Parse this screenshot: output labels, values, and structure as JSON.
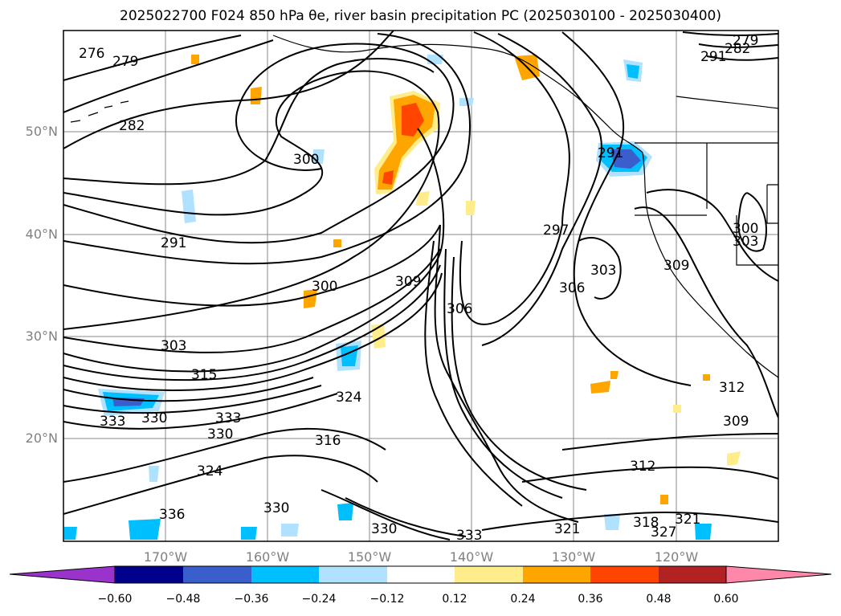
{
  "title": "2025022700 F024 850 hPa θe, river basin precipitation PC (2025030100 - 2025030400)",
  "map": {
    "lat_ticks": [
      "50°N",
      "40°N",
      "30°N",
      "20°N"
    ],
    "lon_ticks": [
      "170°W",
      "160°W",
      "150°W",
      "140°W",
      "130°W",
      "120°W"
    ],
    "contour_labels": [
      "276",
      "279",
      "282",
      "291",
      "300",
      "303",
      "315",
      "333",
      "330",
      "333",
      "330",
      "324",
      "336",
      "330",
      "316",
      "324",
      "300",
      "309",
      "306",
      "297",
      "306",
      "303",
      "309",
      "303",
      "300",
      "312",
      "309",
      "312",
      "318",
      "327",
      "321",
      "330",
      "333",
      "321",
      "279",
      "282",
      "291",
      "291"
    ]
  },
  "colorbar": {
    "ticks": [
      "−0.60",
      "−0.48",
      "−0.36",
      "−0.24",
      "−0.12",
      "0.12",
      "0.24",
      "0.36",
      "0.48",
      "0.60"
    ],
    "colors": {
      "under": "#9933cc",
      "bins": [
        "#00008b",
        "#3a5fcd",
        "#00bfff",
        "#b0e2ff",
        "#ffffff",
        "#ffec8b",
        "#ffa500",
        "#ff4500",
        "#b22222",
        "#ff88aa"
      ]
    }
  }
}
